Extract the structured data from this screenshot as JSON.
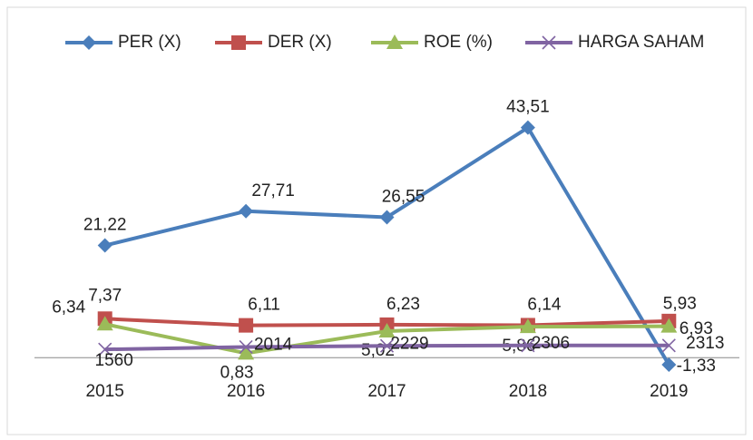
{
  "chart_data": {
    "type": "line",
    "categories": [
      "2015",
      "2016",
      "2017",
      "2018",
      "2019"
    ],
    "ylim": [
      -13,
      51
    ],
    "y2lim": [
      -13000,
      51000
    ],
    "series": [
      {
        "name": "PER (X)",
        "color": "#4a7ebb",
        "marker": "diamond",
        "values": [
          21.22,
          27.71,
          26.55,
          43.51,
          -1.33
        ],
        "value_labels": [
          "21,22",
          "27,71",
          "26,55",
          "43,51",
          "-1,33"
        ]
      },
      {
        "name": "DER (X)",
        "color": "#c0504d",
        "marker": "square",
        "values": [
          7.37,
          6.11,
          6.23,
          6.14,
          6.93
        ],
        "value_labels": [
          "7,37",
          "6,11",
          "6,23",
          "6,14",
          "6,93"
        ]
      },
      {
        "name": "ROE (%)",
        "color": "#9bbb59",
        "marker": "triangle",
        "values": [
          6.34,
          0.83,
          5.02,
          5.86,
          5.93
        ],
        "value_labels": [
          "6,34",
          "0,83",
          "5,02",
          "5,86",
          "5,93"
        ]
      },
      {
        "name": "HARGA SAHAM",
        "color": "#8064a2",
        "marker": "x",
        "axis": "y2",
        "values": [
          1560,
          2014,
          2229,
          2306,
          2313
        ]
      }
    ]
  }
}
